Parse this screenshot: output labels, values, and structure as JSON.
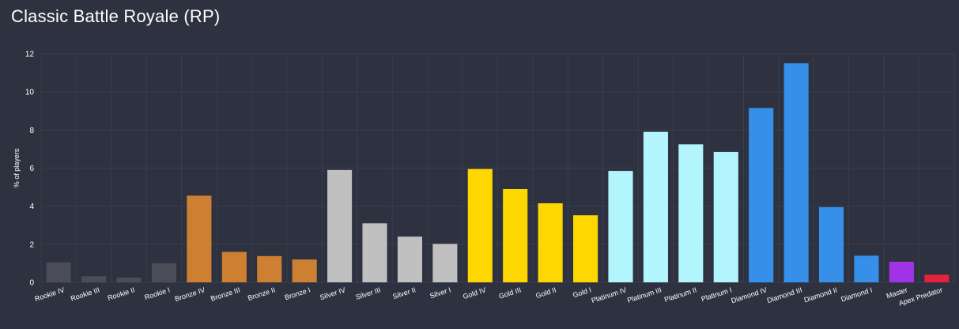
{
  "chart_data": {
    "type": "bar",
    "title": "Classic Battle Royale (RP)",
    "ylabel": "% of players",
    "xlabel": "",
    "ylim": [
      0,
      12
    ],
    "yticks": [
      0,
      2,
      4,
      6,
      8,
      10,
      12
    ],
    "grid": true,
    "legend": "none",
    "categories": [
      "Rookie IV",
      "Rookie III",
      "Rookie II",
      "Rookie I",
      "Bronze IV",
      "Bronze III",
      "Bronze II",
      "Bronze I",
      "Silver IV",
      "Silver III",
      "Silver II",
      "Silver I",
      "Gold IV",
      "Gold III",
      "Gold II",
      "Gold I",
      "Platinum IV",
      "Platinum III",
      "Platinum II",
      "Platinum I",
      "Diamond IV",
      "Diamond III",
      "Diamond II",
      "Diamond I",
      "Master",
      "Apex Predator"
    ],
    "values": [
      1.05,
      0.32,
      0.25,
      1.0,
      4.55,
      1.6,
      1.38,
      1.2,
      5.9,
      3.1,
      2.4,
      2.02,
      5.95,
      4.9,
      4.15,
      3.52,
      5.85,
      7.9,
      7.25,
      6.85,
      9.15,
      11.5,
      3.95,
      1.4,
      1.08,
      0.4
    ],
    "colors": [
      "#4a4c57",
      "#4a4c57",
      "#4a4c57",
      "#4a4c57",
      "#cd7f32",
      "#cd7f32",
      "#cd7f32",
      "#cd7f32",
      "#c0c0c0",
      "#c0c0c0",
      "#c0c0c0",
      "#c0c0c0",
      "#ffd700",
      "#ffd700",
      "#ffd700",
      "#ffd700",
      "#b2f5fc",
      "#b2f5fc",
      "#b2f5fc",
      "#b2f5fc",
      "#368fe8",
      "#368fe8",
      "#368fe8",
      "#368fe8",
      "#a033e5",
      "#e3223c"
    ],
    "background_color": "#2e3240",
    "grid_color": "#3a3e4c"
  }
}
